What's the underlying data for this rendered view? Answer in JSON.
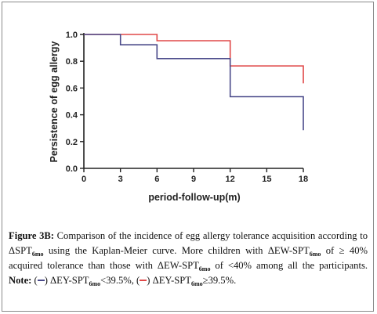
{
  "chart_data": {
    "type": "line",
    "step": true,
    "ylabel": "Persistence of egg allergy",
    "xlabel": "period-follow-up(m)",
    "xlim": [
      0,
      18
    ],
    "ylim": [
      0,
      1.0
    ],
    "x_ticks": [
      "0",
      "3",
      "6",
      "9",
      "12",
      "15",
      "18"
    ],
    "y_ticks": [
      "0.0",
      "0.2",
      "0.4",
      "0.6",
      "0.8",
      "1.0"
    ],
    "series": [
      {
        "color": "#e04848",
        "points": [
          [
            0,
            1.0
          ],
          [
            6,
            1.0
          ],
          [
            6,
            0.953
          ],
          [
            12,
            0.953
          ],
          [
            12,
            0.765
          ],
          [
            18,
            0.765
          ],
          [
            18,
            0.635
          ]
        ]
      },
      {
        "color": "#4a4a8a",
        "points": [
          [
            0,
            1.0
          ],
          [
            3,
            1.0
          ],
          [
            3,
            0.923
          ],
          [
            6,
            0.923
          ],
          [
            6,
            0.82
          ],
          [
            12,
            0.82
          ],
          [
            12,
            0.535
          ],
          [
            18,
            0.535
          ],
          [
            18,
            0.285
          ]
        ]
      }
    ],
    "grid": false,
    "legend": "none"
  },
  "caption": {
    "figure_label": "Figure 3B:",
    "text_1": " Comparison of the incidence of egg allergy tolerance acquisition according to ΔSPT",
    "sub_1": "6mo",
    "text_2": " using the Kaplan-Meier curve. More children with ΔEW-SPT",
    "sub_2": "6mo",
    "text_3": " of ≥ 40% acquired tolerance than those with ΔEW-SPT",
    "sub_3": "6mo",
    "text_4": " of <40% among all the participants. ",
    "note_label": "Note:",
    "text_5": " (",
    "text_6": ") ΔEY-SPT",
    "sub_4": "6mo",
    "text_7": "<39.5%, (",
    "text_8": ") ΔEY-SPT",
    "sub_5": "6mo",
    "text_9": "≥39.5%.",
    "swatch_1_color": "#4a4a8a",
    "swatch_2_color": "#e04848"
  }
}
